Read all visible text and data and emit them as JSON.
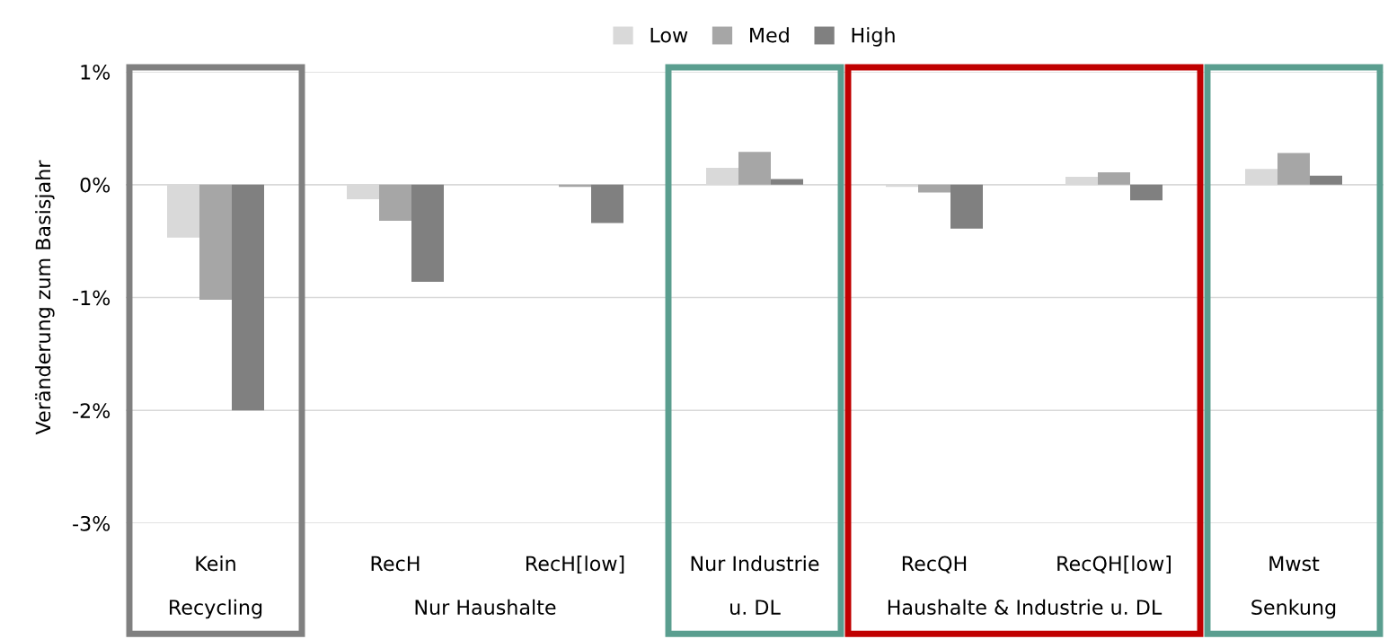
{
  "chart_data": {
    "type": "bar",
    "ylabel": "Veränderung zum Basisjahr",
    "categories": [
      "Kein",
      "RecH",
      "RecH[low]",
      "Nur Industrie",
      "RecQH",
      "RecQH[low]",
      "Mwst"
    ],
    "series": [
      {
        "name": "Low",
        "color": "#d9d9d9",
        "values": [
          -0.47,
          -0.13,
          0.0,
          0.15,
          -0.02,
          0.07,
          0.14
        ]
      },
      {
        "name": "Med",
        "color": "#a6a6a6",
        "values": [
          -1.02,
          -0.32,
          -0.02,
          0.29,
          -0.07,
          0.11,
          0.28
        ]
      },
      {
        "name": "High",
        "color": "#808080",
        "values": [
          -2.0,
          -0.86,
          -0.34,
          0.05,
          -0.39,
          -0.14,
          0.08
        ]
      }
    ],
    "ylim": [
      -3,
      1
    ],
    "yticks": [
      {
        "value": -3,
        "label": "-3%"
      },
      {
        "value": -2,
        "label": "-2%"
      },
      {
        "value": -1,
        "label": "-1%"
      },
      {
        "value": 0,
        "label": "0%"
      },
      {
        "value": 1,
        "label": "1%"
      }
    ],
    "annotations": [
      "Recycling",
      "Nur Haushalte",
      "u. DL",
      "Haushalte & Industrie u. DL",
      "Senkung"
    ],
    "grid": "y",
    "legend": "top"
  }
}
